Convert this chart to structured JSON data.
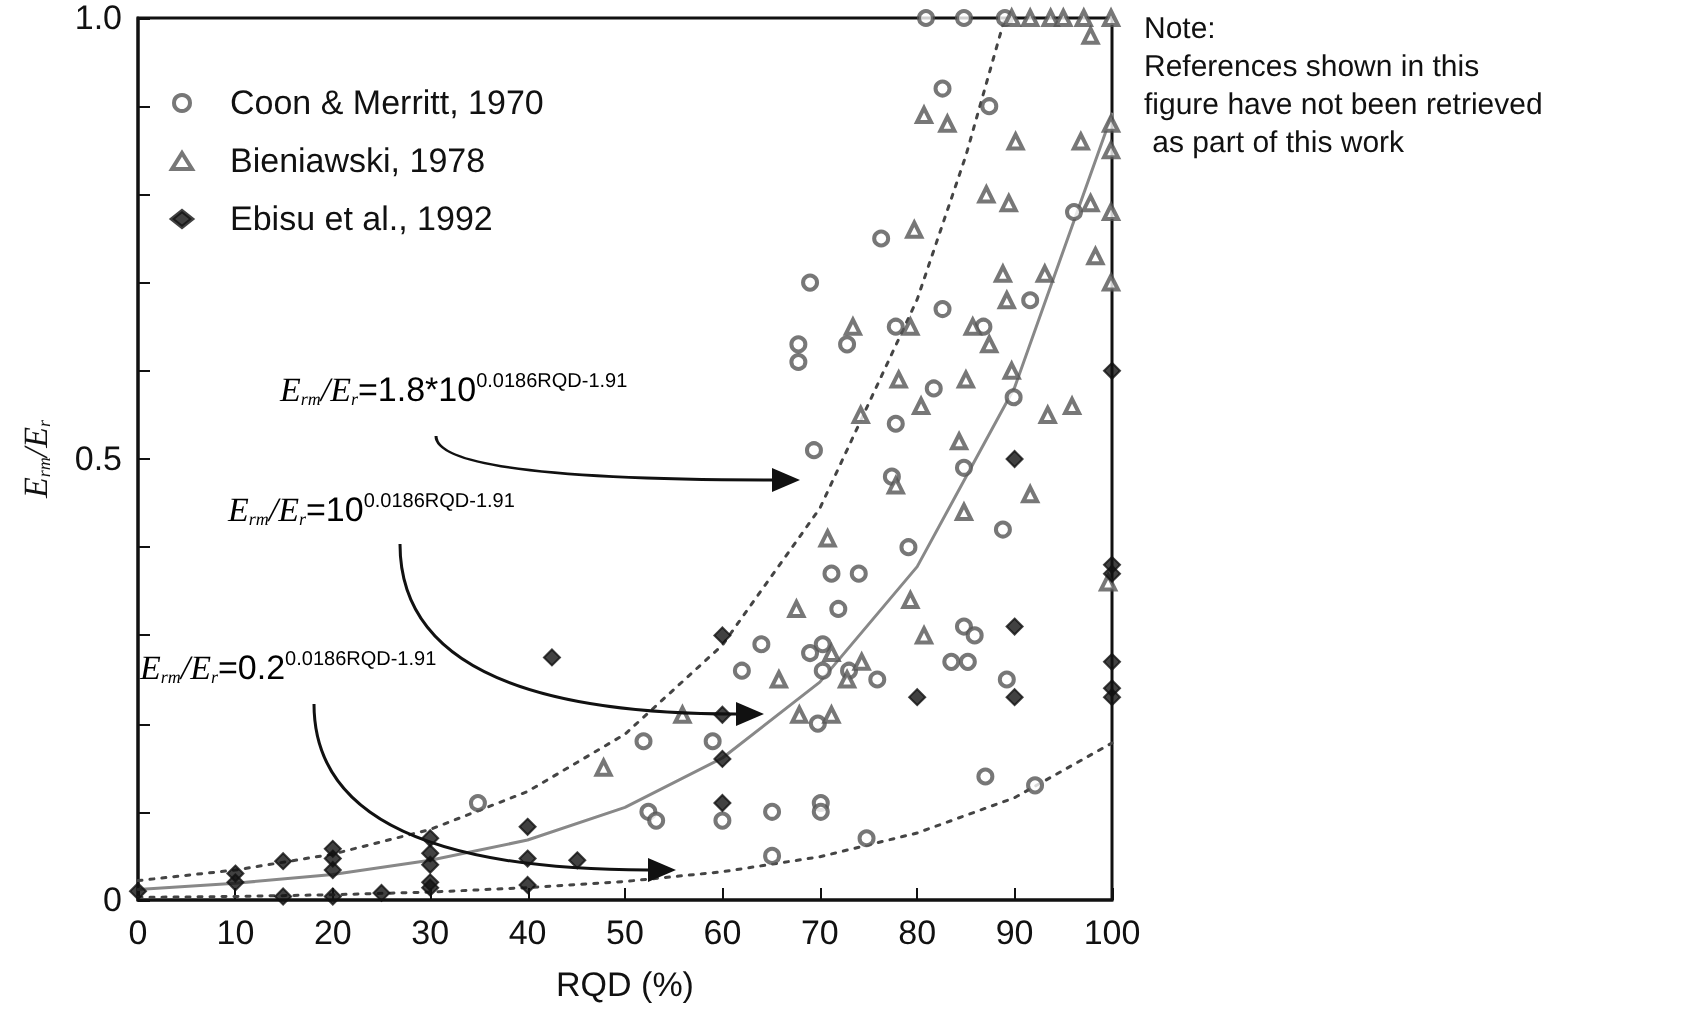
{
  "chart_data": {
    "type": "scatter",
    "xlabel": "RQD (%)",
    "ylabel": "E$_{rm}$/E$_{r}$",
    "xlim": [
      0,
      100
    ],
    "xticks": [
      0,
      10,
      20,
      30,
      40,
      50,
      60,
      70,
      80,
      90,
      100
    ],
    "ylim": [
      0,
      1
    ],
    "yticks": [
      0,
      {
        "value": 0.1,
        "label": null
      },
      {
        "value": 0.2,
        "label": null
      },
      {
        "value": 0.3,
        "label": null
      },
      {
        "value": 0.4,
        "label": null
      },
      0.5,
      {
        "value": 0.6,
        "label": null
      },
      {
        "value": 0.7,
        "label": null
      },
      {
        "value": 0.8,
        "label": null
      },
      {
        "value": 0.9,
        "label": null
      },
      {
        "value": 1,
        "label": "1.0"
      }
    ],
    "grid": false,
    "legend": "top left",
    "annotations": [
      "E$_{rm}$/E$_{r}$=1.8*10$^{0.0186RQD-1.91}$",
      "E$_{rm}$/E$_{r}$=10$^{0.0186RQD-1.91}$",
      "E$_{rm}$/E$_{r}$=0.2$^{0.0186RQD-1.91}$",
      "Note:\nReferences shown in this\nfigure have not been retrieved\n as part of this work"
    ],
    "series": [
      {
        "name": "Coon & Merritt, 1970",
        "marker": "circle",
        "color": "#555555",
        "x": [
          34.9,
          51.9,
          52.4,
          53.2,
          59,
          60,
          62,
          64,
          65.1,
          65.1,
          67.8,
          67.8,
          69,
          69,
          69.4,
          69.8,
          70.1,
          70.1,
          70.3,
          70.3,
          71.2,
          71.9,
          72.8,
          73,
          74,
          74.8,
          75.9,
          76.3,
          77.4,
          77.8,
          77.8,
          79.1,
          80.9,
          81.7,
          82.6,
          82.6,
          83.5,
          84.8,
          84.8,
          84.8,
          85.2,
          85.9,
          86.8,
          87,
          87.4,
          88.8,
          89,
          89.2,
          89.9,
          91.6,
          92.1,
          96.1
        ],
        "values": [
          0.11,
          0.18,
          0.1,
          0.09,
          0.18,
          0.09,
          0.26,
          0.29,
          0.1,
          0.05,
          0.63,
          0.61,
          0.28,
          0.7,
          0.51,
          0.2,
          0.11,
          0.1,
          0.29,
          0.26,
          0.37,
          0.33,
          0.63,
          0.26,
          0.37,
          0.07,
          0.25,
          0.75,
          0.48,
          0.65,
          0.54,
          0.4,
          1.0,
          0.58,
          0.92,
          0.67,
          0.27,
          1.0,
          0.49,
          0.31,
          0.27,
          0.3,
          0.65,
          0.14,
          0.9,
          0.42,
          1.0,
          0.25,
          0.57,
          0.68,
          0.13,
          0.78
        ]
      },
      {
        "name": "Bieniawski, 1978",
        "marker": "triangle",
        "color": "#555555",
        "x": [
          47.8,
          55.9,
          65.8,
          67.6,
          67.9,
          70.8,
          71.2,
          71.2,
          72.8,
          73.4,
          74.2,
          74.3,
          77.8,
          78.1,
          79.3,
          79.3,
          79.7,
          80.4,
          80.7,
          80.7,
          83.1,
          84.3,
          84.8,
          85,
          85.7,
          87.1,
          87.4,
          88.8,
          89.2,
          89.4,
          89.7,
          89.7,
          90.1,
          91.6,
          91.6,
          93.1,
          93.4,
          93.7,
          95,
          95.9,
          96.8,
          97.1,
          97.8,
          97.8,
          98.3,
          99.6,
          99.9,
          99.9,
          99.9,
          99.9,
          99.9
        ],
        "values": [
          0.15,
          0.21,
          0.25,
          0.33,
          0.21,
          0.41,
          0.28,
          0.21,
          0.25,
          0.65,
          0.55,
          0.27,
          0.47,
          0.59,
          0.65,
          0.34,
          0.76,
          0.56,
          0.89,
          0.3,
          0.88,
          0.52,
          0.44,
          0.59,
          0.65,
          0.8,
          0.63,
          0.71,
          0.68,
          0.79,
          1.0,
          0.6,
          0.86,
          1.0,
          0.46,
          0.71,
          0.55,
          1.0,
          1.0,
          0.56,
          0.86,
          1.0,
          0.98,
          0.79,
          0.73,
          0.36,
          1.0,
          0.88,
          0.85,
          0.78,
          0.7
        ]
      },
      {
        "name": "Ebisu et al., 1992",
        "marker": "diamond",
        "color": "#111111",
        "x": [
          0,
          10,
          10,
          14.9,
          14.9,
          20,
          20,
          20,
          20,
          25,
          30,
          30,
          30,
          30,
          30,
          40,
          40,
          40,
          42.5,
          45.1,
          60,
          60,
          60,
          60,
          80,
          90,
          90,
          90,
          100,
          100,
          100,
          100,
          100,
          100
        ],
        "values": [
          0.01,
          0.03,
          0.02,
          0.044,
          0.004,
          0.058,
          0.047,
          0.034,
          0.004,
          0.008,
          0.07,
          0.053,
          0.04,
          0.02,
          0.014,
          0.083,
          0.047,
          0.017,
          0.275,
          0.045,
          0.3,
          0.21,
          0.16,
          0.11,
          0.23,
          0.5,
          0.31,
          0.23,
          0.6,
          0.38,
          0.37,
          0.27,
          0.24,
          0.23
        ]
      },
      {
        "type": "line",
        "marker": "none",
        "line_style": "dotted",
        "color": "#444444",
        "x": [
          0,
          10,
          20,
          30,
          40,
          50,
          60,
          70,
          80,
          85,
          89
        ],
        "values": [
          0.022,
          0.034,
          0.052,
          0.08,
          0.123,
          0.188,
          0.289,
          0.444,
          0.681,
          0.844,
          1.0
        ]
      },
      {
        "type": "line",
        "marker": "none",
        "line_style": "solid",
        "color": "#888888",
        "x": [
          0,
          10,
          20,
          30,
          40,
          50,
          60,
          70,
          80,
          90,
          100
        ],
        "values": [
          0.012,
          0.019,
          0.029,
          0.045,
          0.068,
          0.105,
          0.161,
          0.247,
          0.378,
          0.581,
          0.891
        ]
      },
      {
        "type": "line",
        "marker": "none",
        "line_style": "dotted",
        "color": "#444444",
        "x": [
          0,
          10,
          20,
          30,
          40,
          50,
          60,
          70,
          80,
          90,
          100
        ],
        "values": [
          0.003,
          0.004,
          0.006,
          0.009,
          0.014,
          0.021,
          0.032,
          0.049,
          0.076,
          0.116,
          0.178
        ]
      }
    ]
  }
}
